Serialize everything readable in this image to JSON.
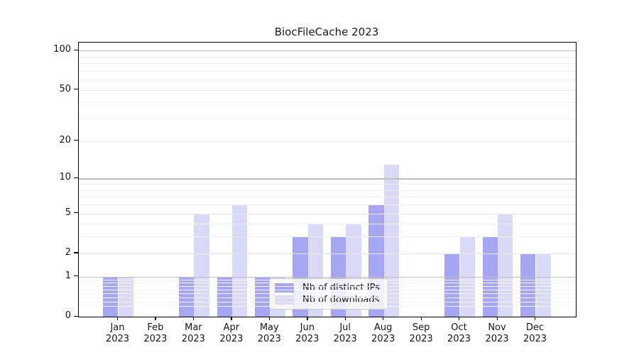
{
  "title": "BiocFileCache 2023",
  "chart_data": {
    "type": "bar",
    "title": "BiocFileCache 2023",
    "categories": [
      "Jan 2023",
      "Feb 2023",
      "Mar 2023",
      "Apr 2023",
      "May 2023",
      "Jun 2023",
      "Jul 2023",
      "Aug 2023",
      "Sep 2023",
      "Oct 2023",
      "Nov 2023",
      "Dec 2023"
    ],
    "months": [
      {
        "m": "Jan",
        "y": "2023"
      },
      {
        "m": "Feb",
        "y": "2023"
      },
      {
        "m": "Mar",
        "y": "2023"
      },
      {
        "m": "Apr",
        "y": "2023"
      },
      {
        "m": "May",
        "y": "2023"
      },
      {
        "m": "Jun",
        "y": "2023"
      },
      {
        "m": "Jul",
        "y": "2023"
      },
      {
        "m": "Aug",
        "y": "2023"
      },
      {
        "m": "Sep",
        "y": "2023"
      },
      {
        "m": "Oct",
        "y": "2023"
      },
      {
        "m": "Nov",
        "y": "2023"
      },
      {
        "m": "Dec",
        "y": "2023"
      }
    ],
    "series": [
      {
        "name": "Nb of distinct IPs",
        "color": "#a6a6f2",
        "values": [
          1,
          0,
          1,
          1,
          1,
          3,
          3,
          6,
          0,
          2,
          3,
          2
        ]
      },
      {
        "name": "Nb of downloads",
        "color": "#dadaf8",
        "values": [
          1,
          0,
          5,
          6,
          1,
          4,
          4,
          13,
          0,
          3,
          5,
          2
        ]
      }
    ],
    "xlabel": "",
    "ylabel": "",
    "y_scale": "log10(1+v)",
    "ylim": [
      0,
      115
    ],
    "y_ticks": [
      {
        "value": 100,
        "label": "100"
      },
      {
        "value": 50,
        "label": "50"
      },
      {
        "value": 20,
        "label": "20"
      },
      {
        "value": 10,
        "label": "10"
      },
      {
        "value": 5,
        "label": "5"
      },
      {
        "value": 2,
        "label": "2"
      },
      {
        "value": 1,
        "label": "1"
      },
      {
        "value": 0,
        "label": "0"
      }
    ],
    "gridlines": {
      "major": [
        1,
        10,
        100
      ],
      "mid": [
        2,
        5,
        20,
        50
      ],
      "minor": [
        3,
        4,
        6,
        7,
        8,
        9,
        30,
        40,
        60,
        70,
        80,
        90
      ],
      "sub": [
        0.2,
        0.3,
        0.4,
        0.5,
        0.6,
        0.7,
        0.8,
        0.9
      ]
    },
    "grid": true,
    "legend_position": "lower center (inside plot)"
  },
  "legend": {
    "items": [
      {
        "label": "Nb of distinct IPs",
        "color": "#a6a6f2"
      },
      {
        "label": "Nb of downloads",
        "color": "#dadaf8"
      }
    ]
  }
}
